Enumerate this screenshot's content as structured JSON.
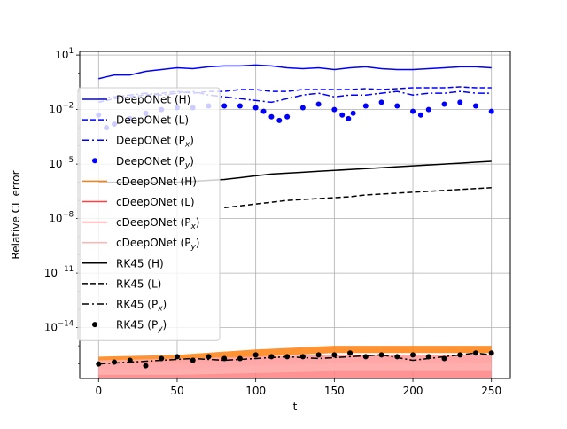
{
  "chart_data": {
    "type": "line",
    "title": "",
    "xlabel": "t",
    "ylabel": "Relative CL error",
    "xlim": [
      -12,
      262
    ],
    "ylim_log10": [
      -16.8,
      1.2
    ],
    "y_scale": "log",
    "grid": true,
    "legend_placement": "upper-left",
    "x_ticks": [
      {
        "value": 0,
        "label": "0"
      },
      {
        "value": 50,
        "label": "50"
      },
      {
        "value": 100,
        "label": "100"
      },
      {
        "value": 150,
        "label": "150"
      },
      {
        "value": 200,
        "label": "200"
      },
      {
        "value": 250,
        "label": "250"
      }
    ],
    "y_ticks": [
      {
        "log10": 1,
        "base": "10",
        "exp": "1"
      },
      {
        "log10": -2,
        "base": "10",
        "exp": "−2"
      },
      {
        "log10": -5,
        "base": "10",
        "exp": "−5"
      },
      {
        "log10": -8,
        "base": "10",
        "exp": "−8"
      },
      {
        "log10": -11,
        "base": "10",
        "exp": "−11"
      },
      {
        "log10": -14,
        "base": "10",
        "exp": "−14"
      }
    ],
    "series": [
      {
        "name": "DeepONet (H)",
        "sub": "",
        "color": "#0000ff",
        "style": "solid",
        "x": [
          0,
          5,
          10,
          20,
          30,
          40,
          50,
          60,
          70,
          80,
          90,
          100,
          110,
          120,
          130,
          140,
          150,
          160,
          170,
          180,
          190,
          200,
          210,
          220,
          230,
          240,
          250
        ],
        "log10": [
          -0.3,
          -0.2,
          -0.1,
          -0.1,
          0.1,
          0.2,
          0.3,
          0.25,
          0.35,
          0.4,
          0.4,
          0.45,
          0.4,
          0.3,
          0.25,
          0.3,
          0.2,
          0.3,
          0.35,
          0.25,
          0.2,
          0.2,
          0.25,
          0.3,
          0.35,
          0.35,
          0.3
        ]
      },
      {
        "name": "DeepONet (L)",
        "sub": "",
        "color": "#0000ff",
        "style": "dashed",
        "x": [
          0,
          10,
          20,
          30,
          40,
          50,
          60,
          70,
          80,
          90,
          100,
          110,
          120,
          130,
          140,
          150,
          160,
          170,
          180,
          190,
          200,
          210,
          220,
          230,
          240,
          250
        ],
        "log10": [
          -1.6,
          -1.4,
          -1.3,
          -1.2,
          -1.1,
          -1.0,
          -1.1,
          -1.0,
          -1.0,
          -0.9,
          -0.9,
          -1.0,
          -1.0,
          -0.9,
          -0.9,
          -0.9,
          -0.9,
          -0.85,
          -0.9,
          -0.85,
          -0.8,
          -0.8,
          -0.8,
          -0.75,
          -0.8,
          -0.8
        ]
      },
      {
        "name": "DeepONet (P",
        "sub": "x",
        "color": "#0000ff",
        "style": "dashdot",
        "x": [
          0,
          10,
          20,
          30,
          40,
          50,
          60,
          70,
          80,
          90,
          100,
          110,
          120,
          130,
          140,
          150,
          160,
          170,
          180,
          190,
          200,
          210,
          220,
          230,
          240,
          250
        ],
        "log10": [
          -1.4,
          -1.3,
          -1.2,
          -1.1,
          -1.2,
          -1.1,
          -1.0,
          -1.2,
          -1.3,
          -1.4,
          -1.5,
          -1.6,
          -1.4,
          -1.2,
          -1.1,
          -1.3,
          -1.2,
          -1.2,
          -1.1,
          -1.0,
          -1.2,
          -1.1,
          -1.1,
          -1.0,
          -1.1,
          -1.1
        ]
      },
      {
        "name": "DeepONet (P",
        "sub": "y",
        "color": "#0000ff",
        "style": "markers",
        "x": [
          0,
          5,
          10,
          20,
          30,
          40,
          50,
          60,
          70,
          80,
          90,
          100,
          105,
          110,
          115,
          120,
          130,
          140,
          150,
          155,
          159,
          162,
          170,
          180,
          190,
          200,
          205,
          210,
          220,
          230,
          240,
          250
        ],
        "log10": [
          -2.3,
          -3.0,
          -2.8,
          -2.5,
          -2.2,
          -2.0,
          -1.9,
          -1.9,
          -1.8,
          -1.8,
          -1.8,
          -1.9,
          -2.1,
          -2.4,
          -2.6,
          -2.4,
          -1.9,
          -1.7,
          -2.0,
          -2.3,
          -2.5,
          -2.2,
          -1.8,
          -1.6,
          -1.8,
          -2.1,
          -2.3,
          -2.0,
          -1.7,
          -1.6,
          -1.8,
          -2.1
        ]
      },
      {
        "name": "cDeepONet (H)",
        "sub": "",
        "color": "#ff7f0e",
        "style": "band",
        "x": [
          0,
          50,
          100,
          150,
          200,
          250
        ],
        "log10_low": [
          -15.9,
          -15.9,
          -15.6,
          -15.4,
          -15.4,
          -15.4
        ],
        "log10_high": [
          -15.6,
          -15.5,
          -15.2,
          -15.0,
          -15.0,
          -15.0
        ]
      },
      {
        "name": "cDeepONet (L)",
        "sub": "",
        "color": "#ff4040",
        "style": "band",
        "x": [
          0,
          50,
          100,
          150,
          200,
          250
        ],
        "log10_low": [
          -16.3,
          -16.3,
          -16.1,
          -16.0,
          -16.0,
          -16.0
        ],
        "log10_high": [
          -15.9,
          -15.8,
          -15.6,
          -15.5,
          -15.5,
          -15.5
        ]
      },
      {
        "name": "cDeepONet (P",
        "sub": "x",
        "color": "#ff8080",
        "style": "band",
        "x": [
          0,
          50,
          100,
          150,
          200,
          250
        ],
        "log10_low": [
          -16.8,
          -16.8,
          -16.8,
          -16.8,
          -16.8,
          -16.8
        ],
        "log10_high": [
          -16.0,
          -16.0,
          -15.9,
          -15.9,
          -15.9,
          -15.9
        ]
      },
      {
        "name": "cDeepONet (P",
        "sub": "y",
        "color": "#ffb3b3",
        "style": "band",
        "x": [
          0,
          50,
          100,
          150,
          200,
          250
        ],
        "log10_low": [
          -16.6,
          -16.6,
          -16.5,
          -16.4,
          -16.4,
          -16.4
        ],
        "log10_high": [
          -15.8,
          -15.7,
          -15.6,
          -15.5,
          -15.5,
          -15.5
        ]
      },
      {
        "name": "RK45 (H)",
        "sub": "",
        "color": "#000000",
        "style": "solid",
        "x": [
          0,
          10,
          20,
          30,
          40,
          50,
          60,
          70,
          80,
          90,
          100,
          110,
          120,
          130,
          140,
          150,
          160,
          170,
          180,
          190,
          200,
          210,
          220,
          230,
          240,
          250
        ],
        "log10": [
          -6.0,
          -6.0,
          -6.0,
          -6.0,
          -6.0,
          -6.0,
          -5.95,
          -5.9,
          -5.85,
          -5.75,
          -5.65,
          -5.55,
          -5.5,
          -5.45,
          -5.4,
          -5.35,
          -5.3,
          -5.25,
          -5.2,
          -5.15,
          -5.1,
          -5.05,
          -5.0,
          -4.95,
          -4.9,
          -4.85
        ]
      },
      {
        "name": "RK45 (L)",
        "sub": "",
        "color": "#000000",
        "style": "dashed",
        "x": [
          80,
          90,
          100,
          110,
          120,
          130,
          140,
          150,
          160,
          170,
          180,
          190,
          200,
          210,
          220,
          230,
          240,
          250
        ],
        "log10": [
          -7.4,
          -7.3,
          -7.2,
          -7.1,
          -7.0,
          -6.95,
          -6.9,
          -6.85,
          -6.8,
          -6.7,
          -6.65,
          -6.6,
          -6.55,
          -6.5,
          -6.45,
          -6.4,
          -6.35,
          -6.3
        ]
      },
      {
        "name": "RK45 (P",
        "sub": "x",
        "color": "#000000",
        "style": "dashdot",
        "x": [
          0,
          20,
          40,
          60,
          80,
          100,
          120,
          140,
          160,
          180,
          200,
          220,
          240,
          250
        ],
        "log10": [
          -16.0,
          -15.9,
          -15.8,
          -15.7,
          -15.8,
          -15.7,
          -15.6,
          -15.7,
          -15.6,
          -15.5,
          -15.8,
          -15.6,
          -15.4,
          -15.5
        ]
      },
      {
        "name": "RK45 (P",
        "sub": "y",
        "color": "#000000",
        "style": "markers",
        "x": [
          0,
          10,
          20,
          30,
          40,
          50,
          60,
          70,
          80,
          90,
          100,
          110,
          120,
          130,
          140,
          150,
          160,
          170,
          180,
          190,
          200,
          210,
          220,
          230,
          240,
          250
        ],
        "log10": [
          -16.0,
          -15.9,
          -15.8,
          -16.1,
          -15.7,
          -15.6,
          -15.8,
          -15.6,
          -15.7,
          -15.7,
          -15.5,
          -15.6,
          -15.6,
          -15.6,
          -15.5,
          -15.5,
          -15.4,
          -15.6,
          -15.5,
          -15.6,
          -15.5,
          -15.6,
          -15.7,
          -15.5,
          -15.4,
          -15.4
        ]
      }
    ]
  }
}
